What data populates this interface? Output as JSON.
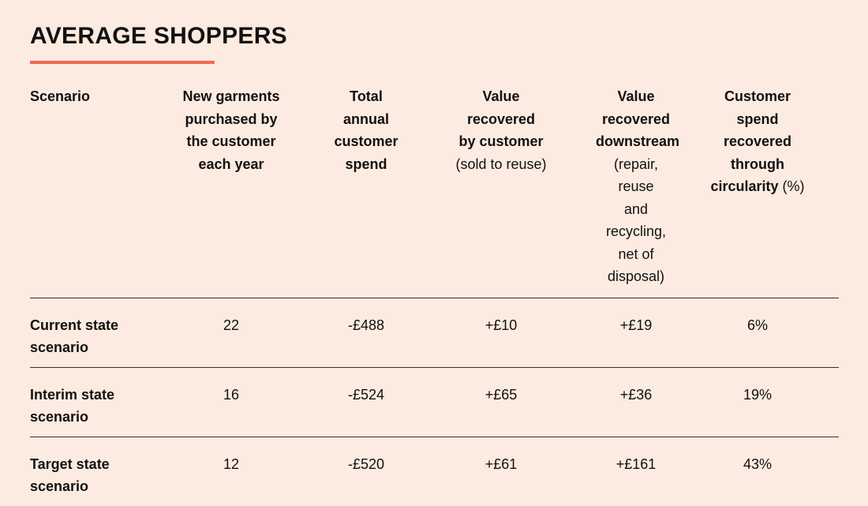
{
  "title": "AVERAGE SHOPPERS",
  "accent_color": "#ee6a55",
  "background_color": "#fcebe0",
  "columns": [
    {
      "lines": [
        "Scenario"
      ]
    },
    {
      "lines": [
        "New garments",
        "purchased by",
        "the customer",
        "each year"
      ]
    },
    {
      "lines": [
        "Total annual",
        "customer",
        "spend"
      ]
    },
    {
      "lines": [
        "Value",
        "recovered",
        "by customer"
      ],
      "sub_lines": [
        "(sold to reuse)"
      ]
    },
    {
      "lines": [
        "Value recovered",
        "downstream"
      ],
      "sub_lines": [
        "(repair, reuse",
        "and recycling,",
        "net of disposal)"
      ]
    },
    {
      "lines": [
        "Customer",
        "spend",
        "recovered",
        "through"
      ],
      "last_line": "circularity",
      "last_line_suffix": " (%)"
    }
  ],
  "rows": [
    {
      "label_lines": [
        "Current state",
        "scenario"
      ],
      "garments": "22",
      "spend": "-£488",
      "recovered_customer": "+£10",
      "recovered_downstream": "+£19",
      "circularity": "6%"
    },
    {
      "label_lines": [
        "Interim state",
        "scenario"
      ],
      "garments": "16",
      "spend": "-£524",
      "recovered_customer": "+£65",
      "recovered_downstream": "+£36",
      "circularity": "19%"
    },
    {
      "label_lines": [
        "Target state",
        "scenario"
      ],
      "garments": "12",
      "spend": "-£520",
      "recovered_customer": "+£61",
      "recovered_downstream": "+£161",
      "circularity": "43%"
    }
  ]
}
